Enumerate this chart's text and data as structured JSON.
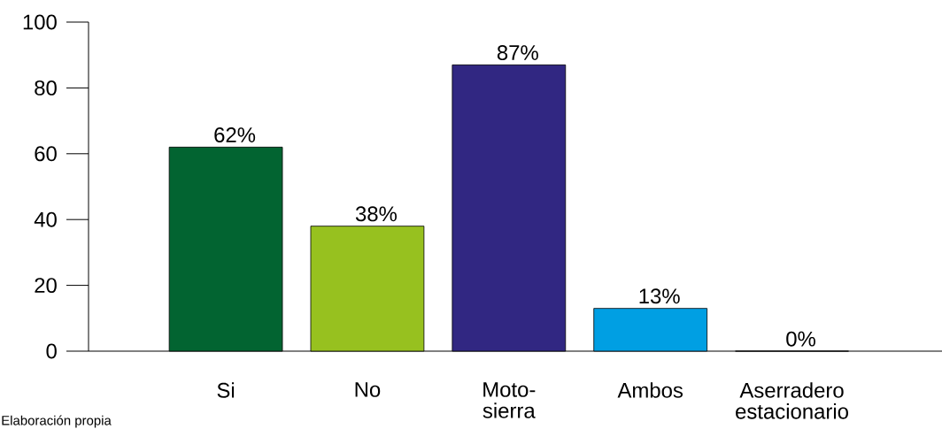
{
  "chart_data": {
    "type": "bar",
    "categories": [
      "Si",
      "No",
      "Moto-sierra",
      "Ambos",
      "Aserradero estacionario"
    ],
    "values": [
      62,
      38,
      87,
      13,
      0
    ],
    "colors": [
      "#026431",
      "#97c11f",
      "#312782",
      "#009fe3",
      "#000000"
    ],
    "value_labels": [
      "62%",
      "38%",
      "87%",
      "13%",
      "0%"
    ],
    "ylim": [
      0,
      100
    ],
    "yticks": [
      0,
      20,
      40,
      60,
      80,
      100
    ],
    "grid": false,
    "annotations": [
      "Elaboración propia"
    ]
  }
}
